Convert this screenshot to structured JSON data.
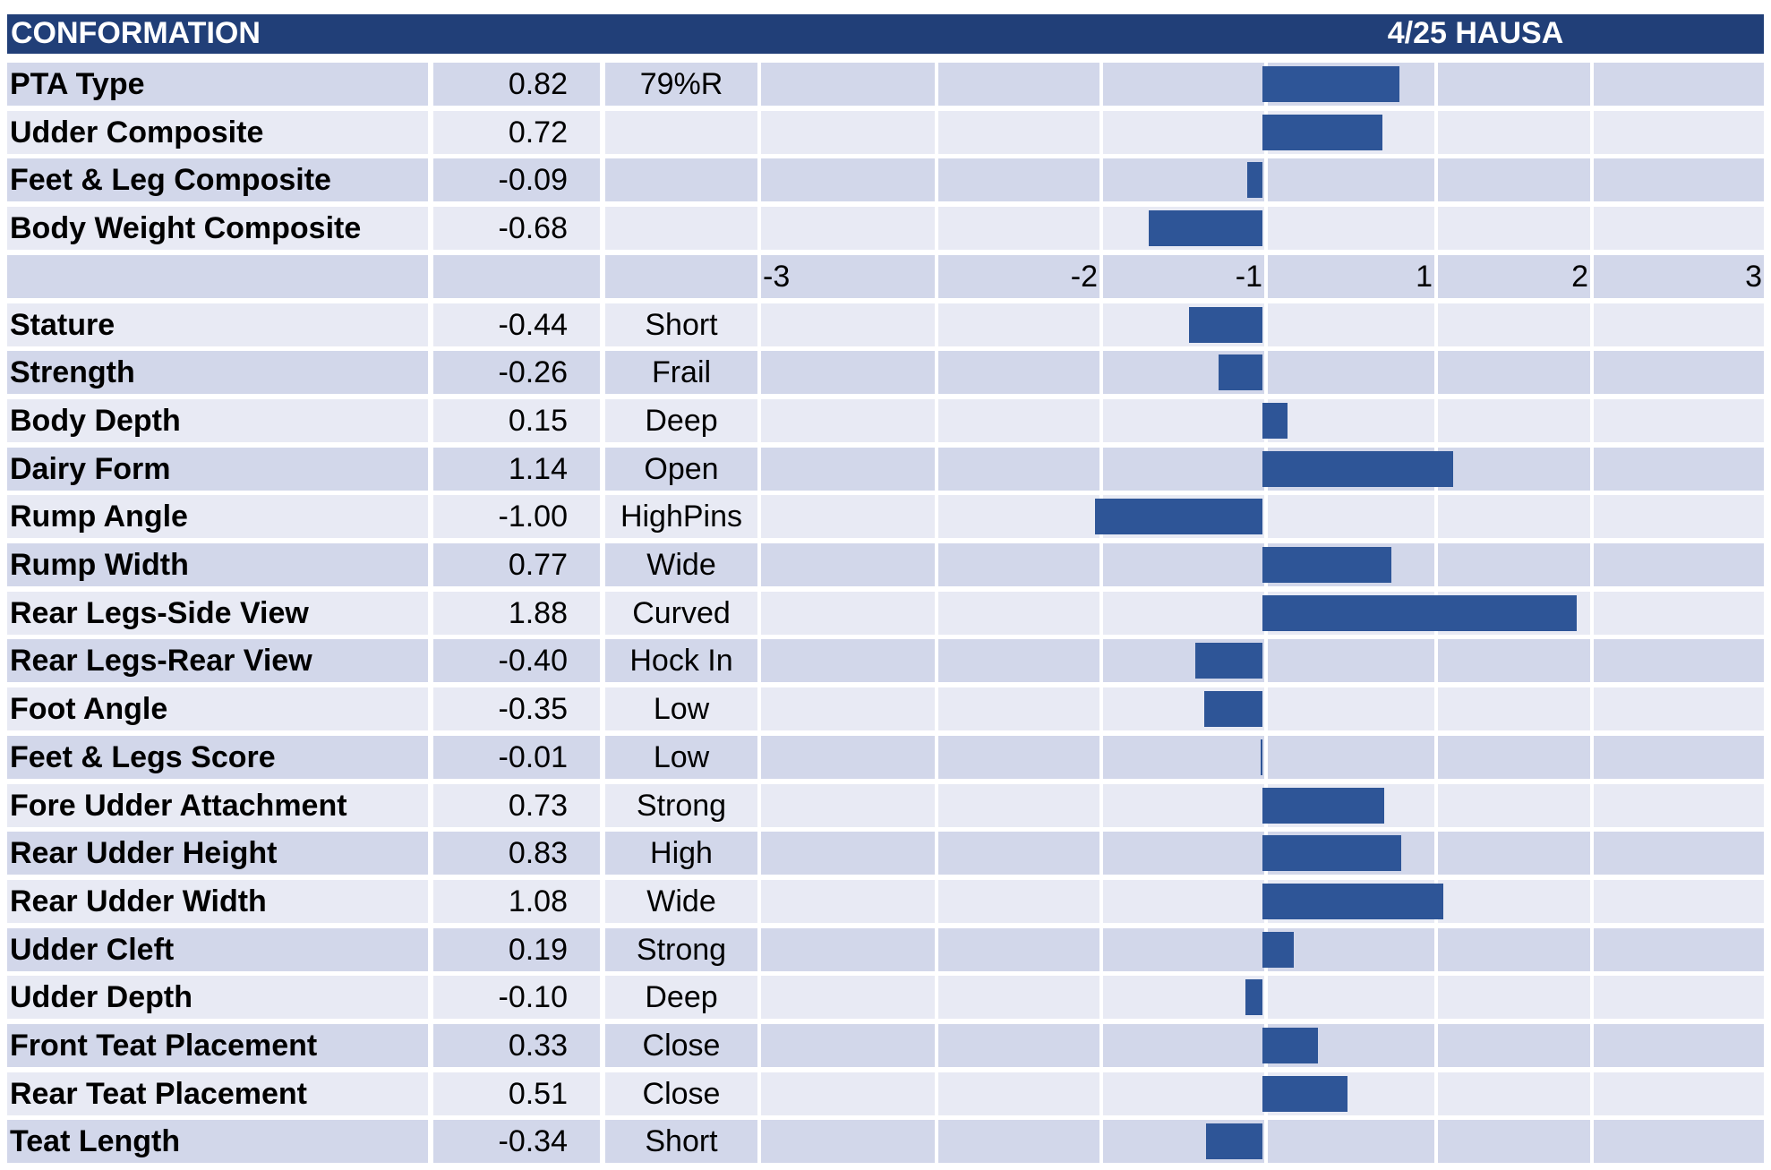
{
  "header": {
    "title": "CONFORMATION",
    "date": "4/25 HAUSA"
  },
  "colors": {
    "header_bg": "#213f78",
    "row_dark": "#d2d7ea",
    "row_light": "#e8eaf4",
    "bar": "#2e5597"
  },
  "composites": [
    {
      "name": "PTA Type",
      "value": "0.82",
      "label": "79%R"
    },
    {
      "name": "Udder Composite",
      "value": "0.72",
      "label": ""
    },
    {
      "name": "Feet & Leg Composite",
      "value": "-0.09",
      "label": ""
    },
    {
      "name": "Body Weight Composite",
      "value": "-0.68",
      "label": ""
    }
  ],
  "axis": {
    "ticks": [
      "-3",
      "-2",
      "-1",
      "1",
      "2",
      "3"
    ]
  },
  "traits": [
    {
      "name": "Stature",
      "value": "-0.44",
      "label": "Short"
    },
    {
      "name": "Strength",
      "value": "-0.26",
      "label": "Frail"
    },
    {
      "name": "Body Depth",
      "value": "0.15",
      "label": "Deep"
    },
    {
      "name": "Dairy Form",
      "value": "1.14",
      "label": "Open"
    },
    {
      "name": "Rump Angle",
      "value": "-1.00",
      "label": "HighPins"
    },
    {
      "name": "Rump Width",
      "value": "0.77",
      "label": "Wide"
    },
    {
      "name": "Rear Legs-Side View",
      "value": "1.88",
      "label": "Curved"
    },
    {
      "name": "Rear Legs-Rear View",
      "value": "-0.40",
      "label": "Hock In"
    },
    {
      "name": "Foot Angle",
      "value": "-0.35",
      "label": "Low"
    },
    {
      "name": "Feet & Legs Score",
      "value": "-0.01",
      "label": "Low"
    },
    {
      "name": "Fore Udder Attachment",
      "value": "0.73",
      "label": "Strong"
    },
    {
      "name": "Rear Udder Height",
      "value": "0.83",
      "label": "High"
    },
    {
      "name": "Rear Udder Width",
      "value": "1.08",
      "label": "Wide"
    },
    {
      "name": "Udder Cleft",
      "value": "0.19",
      "label": "Strong"
    },
    {
      "name": "Udder Depth",
      "value": "-0.10",
      "label": "Deep"
    },
    {
      "name": "Front Teat Placement",
      "value": "0.33",
      "label": "Close"
    },
    {
      "name": "Rear Teat Placement",
      "value": "0.51",
      "label": "Close"
    },
    {
      "name": "Teat Length",
      "value": "-0.34",
      "label": "Short"
    }
  ],
  "chart_data": {
    "type": "bar",
    "orientation": "horizontal",
    "xlim": [
      -3,
      3
    ],
    "grid": true,
    "categories": [
      "PTA Type",
      "Udder Composite",
      "Feet & Leg Composite",
      "Body Weight Composite",
      "Stature",
      "Strength",
      "Body Depth",
      "Dairy Form",
      "Rump Angle",
      "Rump Width",
      "Rear Legs-Side View",
      "Rear Legs-Rear View",
      "Foot Angle",
      "Feet & Legs Score",
      "Fore Udder Attachment",
      "Rear Udder Height",
      "Rear Udder Width",
      "Udder Cleft",
      "Udder Depth",
      "Front Teat Placement",
      "Rear Teat Placement",
      "Teat Length"
    ],
    "values": [
      0.82,
      0.72,
      -0.09,
      -0.68,
      -0.44,
      -0.26,
      0.15,
      1.14,
      -1.0,
      0.77,
      1.88,
      -0.4,
      -0.35,
      -0.01,
      0.73,
      0.83,
      1.08,
      0.19,
      -0.1,
      0.33,
      0.51,
      -0.34
    ]
  }
}
